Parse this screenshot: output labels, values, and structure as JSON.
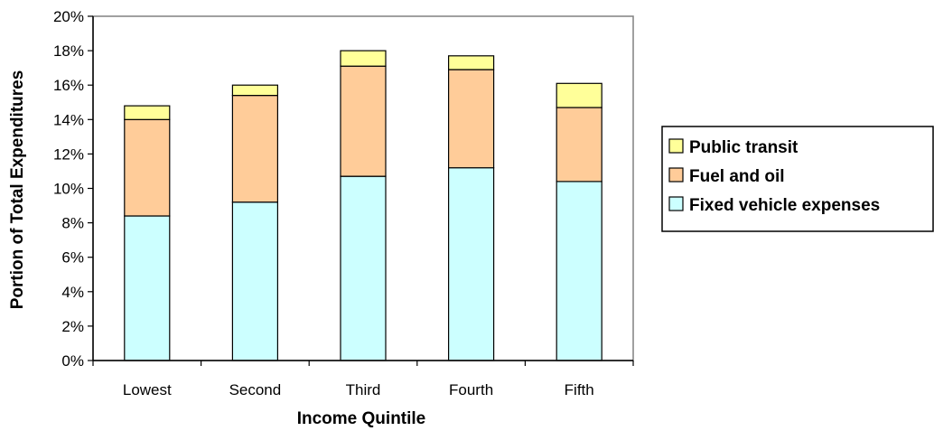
{
  "chart_data": {
    "type": "bar",
    "stacked": true,
    "categories": [
      "Lowest",
      "Second",
      "Third",
      "Fourth",
      "Fifth"
    ],
    "series": [
      {
        "name": "Fixed vehicle expenses",
        "values": [
          8.4,
          9.2,
          10.7,
          11.2,
          10.4
        ],
        "color": "#ccffff"
      },
      {
        "name": "Fuel and oil",
        "values": [
          5.6,
          6.2,
          6.4,
          5.7,
          4.3
        ],
        "color": "#ffcc99"
      },
      {
        "name": "Public transit",
        "values": [
          0.8,
          0.6,
          0.9,
          0.8,
          1.4
        ],
        "color": "#ffff99"
      }
    ],
    "xlabel": "Income Quintile",
    "ylabel": "Portion of Total Expenditures",
    "ylim": [
      0,
      20
    ],
    "y_ticks": [
      "0%",
      "2%",
      "4%",
      "6%",
      "8%",
      "10%",
      "12%",
      "14%",
      "16%",
      "18%",
      "20%"
    ],
    "y_tick_step": 2,
    "grid": false,
    "legend_position": "right",
    "legend_order": [
      "Public transit",
      "Fuel and oil",
      "Fixed vehicle expenses"
    ],
    "plot_border_color": "#808080",
    "bar_stroke_color": "#000000"
  }
}
